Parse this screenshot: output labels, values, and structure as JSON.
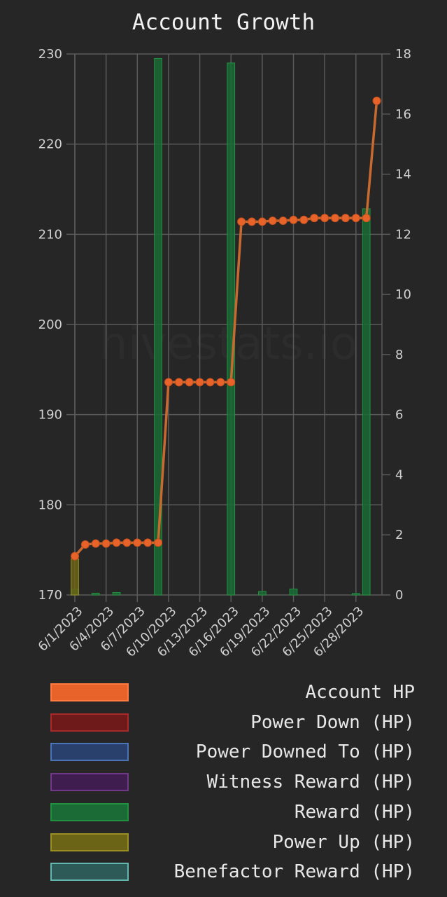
{
  "chart_data": {
    "type": "bar+line",
    "title": "Account Growth",
    "watermark": "hivestats.io",
    "x_tick_labels": [
      "6/1/2023",
      "6/4/2023",
      "6/7/2023",
      "6/10/2023",
      "6/13/2023",
      "6/16/2023",
      "6/19/2023",
      "6/22/2023",
      "6/25/2023",
      "6/28/2023"
    ],
    "x_dates": [
      "6/1",
      "6/2",
      "6/3",
      "6/4",
      "6/5",
      "6/6",
      "6/7",
      "6/8",
      "6/9",
      "6/10",
      "6/11",
      "6/12",
      "6/13",
      "6/14",
      "6/15",
      "6/16",
      "6/17",
      "6/18",
      "6/19",
      "6/20",
      "6/21",
      "6/22",
      "6/23",
      "6/24",
      "6/25",
      "6/26",
      "6/27",
      "6/28",
      "6/29",
      "6/30"
    ],
    "y_left": {
      "lim": [
        170,
        230
      ],
      "ticks": [
        170,
        180,
        190,
        200,
        210,
        220,
        230
      ]
    },
    "y_right": {
      "lim": [
        0,
        18
      ],
      "ticks": [
        0,
        2,
        4,
        6,
        8,
        10,
        12,
        14,
        16,
        18
      ]
    },
    "grid": true,
    "legend_position": "bottom",
    "series": [
      {
        "name": "Account HP",
        "type": "line",
        "axis": "left",
        "color": "#e8632a",
        "values": [
          174.3,
          175.6,
          175.7,
          175.7,
          175.8,
          175.8,
          175.8,
          175.8,
          175.8,
          193.6,
          193.6,
          193.6,
          193.6,
          193.6,
          193.6,
          193.6,
          211.4,
          211.4,
          211.4,
          211.5,
          211.5,
          211.6,
          211.6,
          211.8,
          211.8,
          211.8,
          211.8,
          211.8,
          211.8,
          224.8
        ]
      },
      {
        "name": "Power Down (HP)",
        "type": "bar",
        "axis": "right",
        "color": "#6e1a1a",
        "border": "#a82b2b",
        "values": [
          0,
          0,
          0,
          0,
          0,
          0,
          0,
          0,
          0,
          0,
          0,
          0,
          0,
          0,
          0,
          0,
          0,
          0,
          0,
          0,
          0,
          0,
          0,
          0,
          0,
          0,
          0,
          0,
          0,
          0
        ]
      },
      {
        "name": "Power Downed To (HP)",
        "type": "bar",
        "axis": "right",
        "color": "#28406b",
        "border": "#4b73b8",
        "values": [
          0,
          0,
          0,
          0,
          0,
          0,
          0,
          0,
          0,
          0,
          0,
          0,
          0,
          0,
          0,
          0,
          0,
          0,
          0,
          0,
          0,
          0,
          0,
          0,
          0,
          0,
          0,
          0,
          0,
          0
        ]
      },
      {
        "name": "Witness Reward (HP)",
        "type": "bar",
        "axis": "right",
        "color": "#3f1d4f",
        "border": "#6e3a88",
        "values": [
          0,
          0,
          0,
          0,
          0,
          0,
          0,
          0,
          0,
          0,
          0,
          0,
          0,
          0,
          0,
          0,
          0,
          0,
          0,
          0,
          0,
          0,
          0,
          0,
          0,
          0,
          0,
          0,
          0,
          0
        ]
      },
      {
        "name": "Reward (HP)",
        "type": "bar",
        "axis": "right",
        "color": "#1a6b35",
        "border": "#22913f",
        "values": [
          0.2,
          0,
          0.06,
          0,
          0.08,
          0,
          0,
          0,
          17.85,
          0,
          0,
          0,
          0,
          0,
          0,
          17.7,
          0,
          0,
          0.12,
          0,
          0,
          0.2,
          0,
          0,
          0,
          0,
          0,
          0.05,
          12.85,
          0
        ]
      },
      {
        "name": "Power Up (HP)",
        "type": "bar",
        "axis": "right",
        "color": "#6b6416",
        "border": "#9a8f24",
        "values": [
          1.2,
          0,
          0,
          0,
          0,
          0,
          0,
          0,
          0,
          0,
          0,
          0,
          0,
          0,
          0,
          0,
          0,
          0,
          0,
          0,
          0,
          0,
          0,
          0,
          0,
          0,
          0,
          0,
          0,
          0
        ]
      },
      {
        "name": "Benefactor Reward (HP)",
        "type": "bar",
        "axis": "right",
        "color": "#2d5a57",
        "border": "#62b8b0",
        "values": [
          0,
          0,
          0,
          0,
          0,
          0,
          0,
          0,
          0,
          0,
          0,
          0,
          0,
          0,
          0,
          0,
          0,
          0,
          0,
          0,
          0,
          0,
          0,
          0,
          0,
          0,
          0,
          0,
          0,
          0
        ]
      }
    ]
  }
}
